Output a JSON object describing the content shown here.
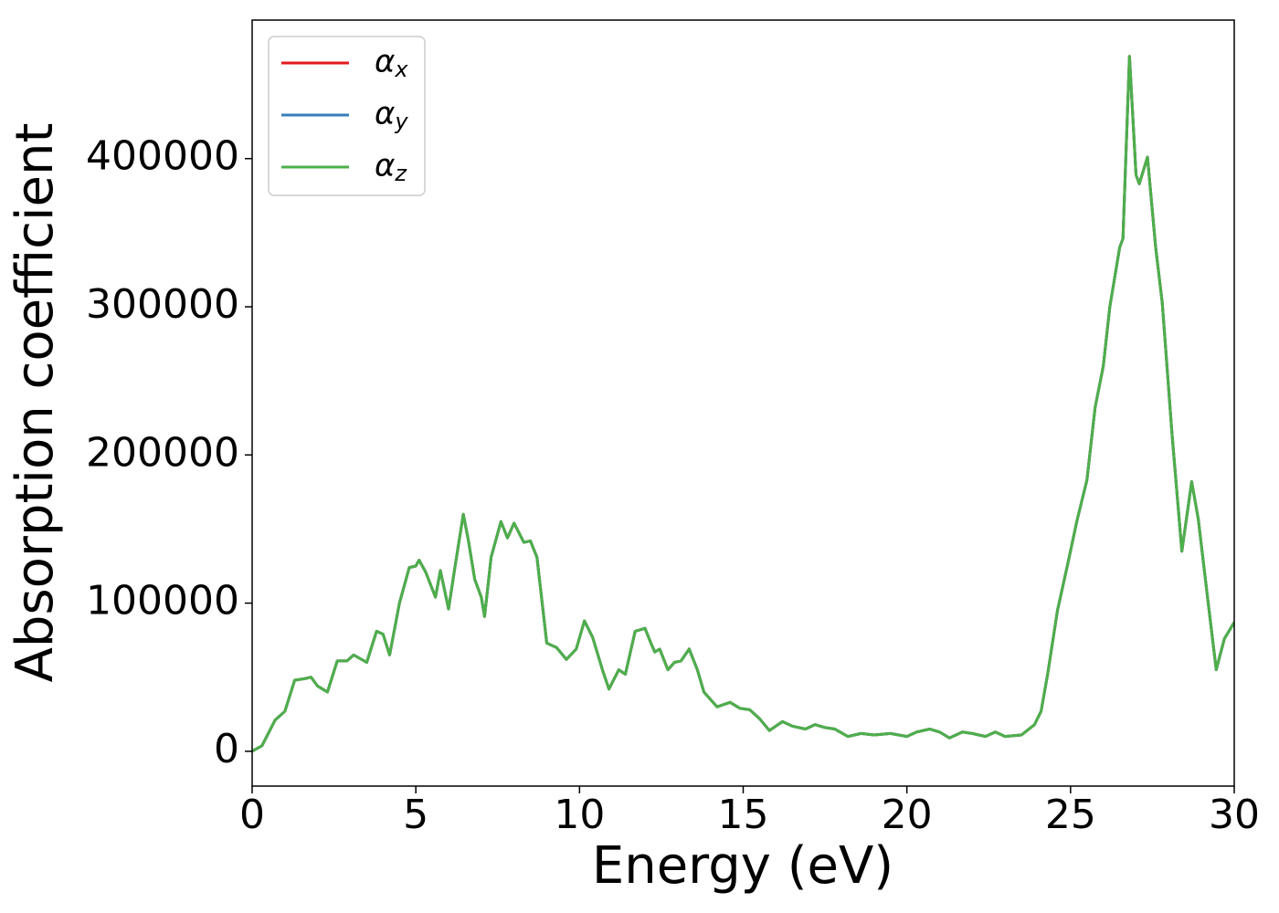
{
  "chart_data": {
    "type": "line",
    "xlabel": "Energy (eV)",
    "ylabel": "Absorption coefficient",
    "x": [
      0,
      0.3,
      0.7,
      1.0,
      1.3,
      1.6,
      1.8,
      2.0,
      2.3,
      2.6,
      2.9,
      3.1,
      3.5,
      3.8,
      4.0,
      4.2,
      4.5,
      4.8,
      5.0,
      5.1,
      5.3,
      5.6,
      5.75,
      6.0,
      6.2,
      6.45,
      6.6,
      6.8,
      7.0,
      7.1,
      7.3,
      7.6,
      7.8,
      8.0,
      8.3,
      8.5,
      8.7,
      9.0,
      9.3,
      9.6,
      9.9,
      10.15,
      10.4,
      10.7,
      10.9,
      11.2,
      11.4,
      11.7,
      12.0,
      12.2,
      12.3,
      12.45,
      12.7,
      12.9,
      13.1,
      13.35,
      13.6,
      13.8,
      14.2,
      14.6,
      14.9,
      15.2,
      15.5,
      15.8,
      16.2,
      16.5,
      16.9,
      17.2,
      17.5,
      17.8,
      18.2,
      18.6,
      19.0,
      19.5,
      20.0,
      20.3,
      20.7,
      21.0,
      21.3,
      21.7,
      22.0,
      22.4,
      22.7,
      23.0,
      23.5,
      23.9,
      24.1,
      24.3,
      24.6,
      24.9,
      25.2,
      25.5,
      25.75,
      26.0,
      26.2,
      26.5,
      26.6,
      26.8,
      27.0,
      27.1,
      27.35,
      27.6,
      27.8,
      28.1,
      28.4,
      28.7,
      28.9,
      29.2,
      29.45,
      29.7,
      30.0
    ],
    "series": [
      {
        "name": "αx",
        "color": "#e41a1c",
        "values": [
          0,
          3700,
          21000,
          27000,
          48000,
          49000,
          50000,
          44000,
          40000,
          61000,
          61000,
          65000,
          60000,
          81000,
          79000,
          65000,
          100000,
          124000,
          125000,
          129000,
          121000,
          104000,
          122000,
          96000,
          125000,
          160000,
          143000,
          116000,
          104000,
          91000,
          131000,
          155000,
          144000,
          154000,
          141000,
          142000,
          131000,
          73000,
          70000,
          62000,
          69000,
          88000,
          77000,
          55000,
          42000,
          55000,
          52000,
          81000,
          83000,
          72000,
          67000,
          69000,
          55000,
          60000,
          61000,
          69000,
          55000,
          40000,
          30000,
          33000,
          29000,
          28000,
          22000,
          14000,
          20000,
          17000,
          15000,
          18000,
          16000,
          15000,
          10000,
          12000,
          11000,
          12000,
          10000,
          13000,
          15000,
          13000,
          9000,
          13000,
          12000,
          10000,
          13000,
          10000,
          11000,
          18000,
          27000,
          52000,
          95000,
          125000,
          156000,
          183000,
          232000,
          260000,
          300000,
          340000,
          346000,
          469000,
          389000,
          383000,
          401000,
          340000,
          303000,
          214000,
          135000,
          182000,
          157000,
          101000,
          55000,
          76000,
          87000
        ]
      },
      {
        "name": "αy",
        "color": "#377eb8",
        "values": [
          0,
          3700,
          21000,
          27000,
          48000,
          49000,
          50000,
          44000,
          40000,
          61000,
          61000,
          65000,
          60000,
          81000,
          79000,
          65000,
          100000,
          124000,
          125000,
          129000,
          121000,
          104000,
          122000,
          96000,
          125000,
          160000,
          143000,
          116000,
          104000,
          91000,
          131000,
          155000,
          144000,
          154000,
          141000,
          142000,
          131000,
          73000,
          70000,
          62000,
          69000,
          88000,
          77000,
          55000,
          42000,
          55000,
          52000,
          81000,
          83000,
          72000,
          67000,
          69000,
          55000,
          60000,
          61000,
          69000,
          55000,
          40000,
          30000,
          33000,
          29000,
          28000,
          22000,
          14000,
          20000,
          17000,
          15000,
          18000,
          16000,
          15000,
          10000,
          12000,
          11000,
          12000,
          10000,
          13000,
          15000,
          13000,
          9000,
          13000,
          12000,
          10000,
          13000,
          10000,
          11000,
          18000,
          27000,
          52000,
          95000,
          125000,
          156000,
          183000,
          232000,
          260000,
          300000,
          340000,
          346000,
          469000,
          389000,
          383000,
          401000,
          340000,
          303000,
          214000,
          135000,
          182000,
          157000,
          101000,
          55000,
          76000,
          87000
        ]
      },
      {
        "name": "αz",
        "color": "#4daf4a",
        "values": [
          0,
          3700,
          21000,
          27000,
          48000,
          49000,
          50000,
          44000,
          40000,
          61000,
          61000,
          65000,
          60000,
          81000,
          79000,
          65000,
          100000,
          124000,
          125000,
          129000,
          121000,
          104000,
          122000,
          96000,
          125000,
          160000,
          143000,
          116000,
          104000,
          91000,
          131000,
          155000,
          144000,
          154000,
          141000,
          142000,
          131000,
          73000,
          70000,
          62000,
          69000,
          88000,
          77000,
          55000,
          42000,
          55000,
          52000,
          81000,
          83000,
          72000,
          67000,
          69000,
          55000,
          60000,
          61000,
          69000,
          55000,
          40000,
          30000,
          33000,
          29000,
          28000,
          22000,
          14000,
          20000,
          17000,
          15000,
          18000,
          16000,
          15000,
          10000,
          12000,
          11000,
          12000,
          10000,
          13000,
          15000,
          13000,
          9000,
          13000,
          12000,
          10000,
          13000,
          10000,
          11000,
          18000,
          27000,
          52000,
          95000,
          125000,
          156000,
          183000,
          232000,
          260000,
          300000,
          340000,
          346000,
          469000,
          389000,
          383000,
          401000,
          340000,
          303000,
          214000,
          135000,
          182000,
          157000,
          101000,
          55000,
          76000,
          87000
        ]
      }
    ],
    "xlim": [
      0,
      30
    ],
    "xticks": [
      0,
      5,
      10,
      15,
      20,
      25,
      30
    ],
    "ylim": [
      -23500,
      493500
    ],
    "yticks": [
      0,
      100000,
      200000,
      300000,
      400000
    ],
    "grid": false,
    "legend": "upper left"
  }
}
